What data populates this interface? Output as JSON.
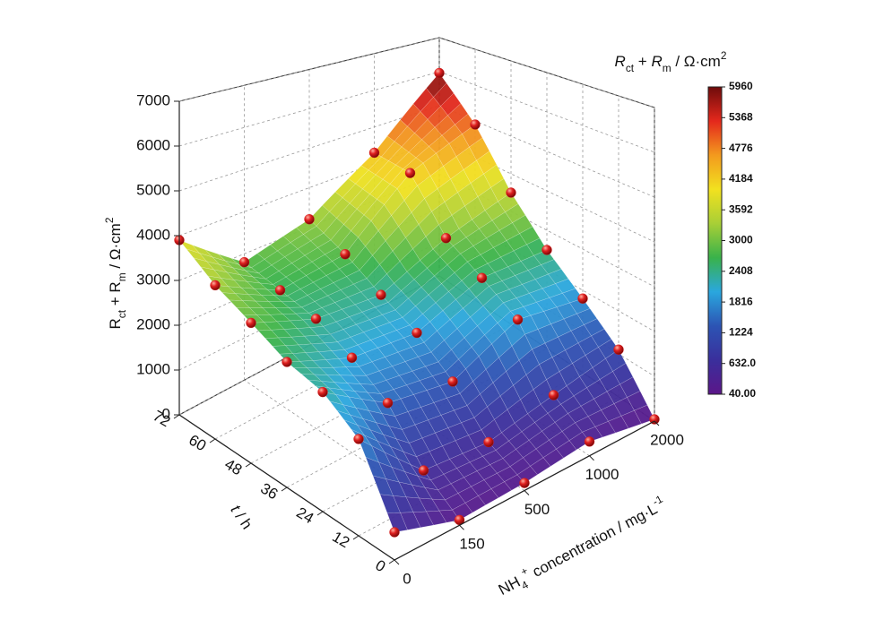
{
  "chart_data": {
    "type": "surface3d",
    "x_label": [
      {
        "text": "NH"
      },
      {
        "text": "4",
        "sub": true
      },
      {
        "text": "+",
        "sup": true
      },
      {
        "text": " concentration / mg·L"
      },
      {
        "text": "-1",
        "sup": true
      }
    ],
    "t_label": [
      {
        "text": "t",
        "italic": true
      },
      {
        "text": " / h"
      }
    ],
    "z_label": [
      {
        "text": "R"
      },
      {
        "text": "ct",
        "sub": true
      },
      {
        "text": " + R"
      },
      {
        "text": "m",
        "sub": true
      },
      {
        "text": " / Ω·cm"
      },
      {
        "text": "2",
        "sup": true
      }
    ],
    "colorbar_title": [
      {
        "text": "R",
        "italic": true
      },
      {
        "text": "ct",
        "sub": true
      },
      {
        "text": " + "
      },
      {
        "text": "R",
        "italic": true
      },
      {
        "text": "m",
        "sub": true
      },
      {
        "text": " / Ω·cm"
      },
      {
        "text": "2",
        "sup": true
      }
    ],
    "categories": [
      "0",
      "150",
      "500",
      "1000",
      "2000"
    ],
    "t": [
      0,
      12,
      24,
      36,
      48,
      60,
      72
    ],
    "values": [
      [
        500,
        100,
        150,
        300,
        40
      ],
      [
        1800,
        600,
        500,
        800,
        1100
      ],
      [
        2300,
        1500,
        1300,
        2000,
        1800
      ],
      [
        2500,
        2000,
        1900,
        2500,
        2500
      ],
      [
        2900,
        2400,
        2300,
        3000,
        3500
      ],
      [
        3300,
        2600,
        2800,
        4200,
        4900
      ],
      [
        3900,
        2800,
        3200,
        4300,
        5960
      ]
    ],
    "zlim": [
      0,
      7000
    ],
    "zticks": [
      0,
      1000,
      2000,
      3000,
      4000,
      5000,
      6000,
      7000
    ],
    "clim": [
      40,
      5960
    ],
    "cticks": [
      5960,
      5368,
      4776,
      4184,
      3592,
      3000,
      2408,
      1816,
      1224,
      {
        "value": 632,
        "label": "632.0"
      },
      {
        "value": 40,
        "label": "40.00"
      }
    ],
    "colormap": [
      "#5b1689",
      "#3a2f9c",
      "#2c54b4",
      "#2aa7de",
      "#39b24a",
      "#a8cf36",
      "#f2e11f",
      "#f39a1e",
      "#e4281c",
      "#6e0b0b"
    ],
    "point_color": "#d81e1e",
    "grid": true
  }
}
